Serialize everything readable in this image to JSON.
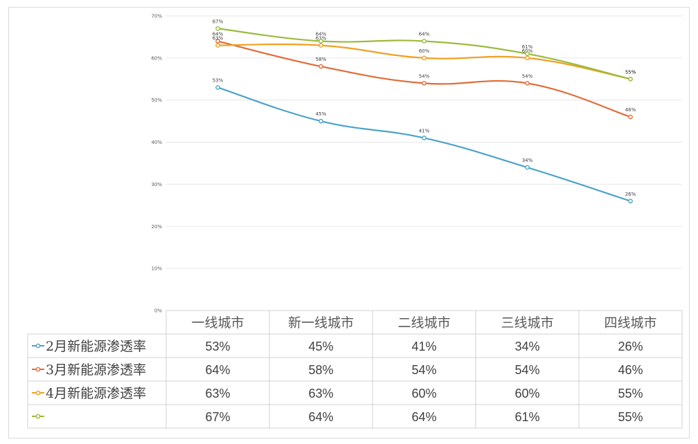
{
  "chart_data": {
    "type": "line",
    "categories": [
      "一线城市",
      "新一线城市",
      "二线城市",
      "三线城市",
      "四线城市"
    ],
    "ylim": [
      0,
      70
    ],
    "yticks": [
      "0%",
      "10%",
      "20%",
      "30%",
      "40%",
      "50%",
      "60%",
      "70%"
    ],
    "grid": true,
    "legend": "table-left",
    "series": [
      {
        "name": "2月新能源渗透率",
        "color": "#4BA3C7",
        "values": [
          53,
          45,
          41,
          34,
          26
        ],
        "labels": [
          "53%",
          "45%",
          "41%",
          "34%",
          "26%"
        ]
      },
      {
        "name": "3月新能源渗透率",
        "color": "#E26A35",
        "values": [
          64,
          58,
          54,
          54,
          46
        ],
        "labels": [
          "64%",
          "58%",
          "54%",
          "54%",
          "46%"
        ]
      },
      {
        "name": "4月新能源渗透率",
        "color": "#F0A020",
        "values": [
          63,
          63,
          60,
          60,
          55
        ],
        "labels": [
          "63%",
          "63%",
          "60%",
          "60%",
          "55%"
        ]
      },
      {
        "name": "",
        "color": "#9BBB3C",
        "values": [
          67,
          64,
          64,
          61,
          55
        ],
        "labels": [
          "67%",
          "64%",
          "64%",
          "61%",
          "55%"
        ]
      }
    ]
  }
}
